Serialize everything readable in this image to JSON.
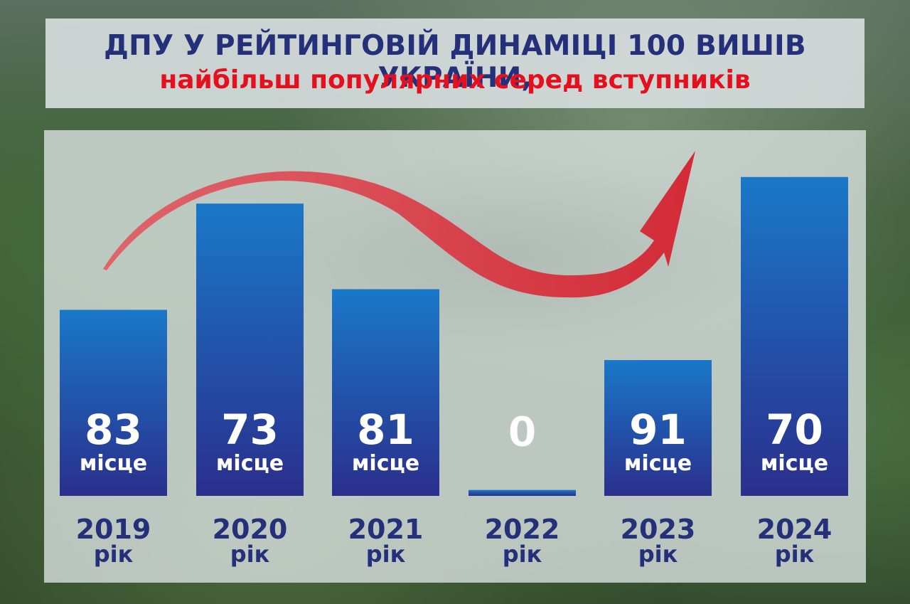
{
  "header": {
    "title_line1": "ДПУ У РЕЙТИНГОВІЙ ДИНАМІЦІ 100 ВИШІВ УКРАЇНИ,",
    "title_line2": "найбільш популярних серед вступників"
  },
  "colors": {
    "title_primary": "#25307a",
    "title_accent": "#e4101e",
    "bar_top": "#1a78c8",
    "bar_bottom": "#2a2f8c",
    "arrow": "#e03040"
  },
  "chart_data": {
    "type": "bar",
    "title": "ДПУ У РЕЙТИНГОВІЙ ДИНАМІЦІ 100 ВИШІВ УКРАЇНИ, найбільш популярних серед вступників",
    "categories": [
      "2019",
      "2020",
      "2021",
      "2022",
      "2023",
      "2024"
    ],
    "category_suffix": "рік",
    "value_labels": [
      "83",
      "73",
      "81",
      "0",
      "91",
      "70"
    ],
    "value_unit": "місце",
    "values": [
      83,
      73,
      81,
      0,
      91,
      70
    ],
    "bar_levels": [
      0.63,
      0.99,
      0.7,
      0.02,
      0.46,
      1.08
    ],
    "trend_arrow": "rising, left to right",
    "ylim": [
      0,
      100
    ],
    "grid": false,
    "legend": "none"
  }
}
